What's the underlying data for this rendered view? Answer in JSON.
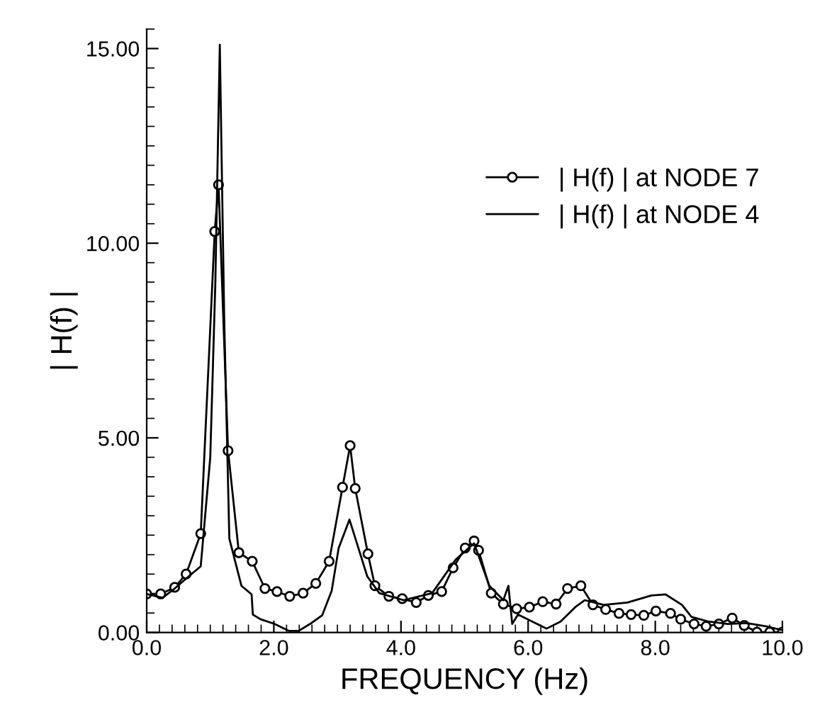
{
  "chart_data": {
    "type": "line",
    "xlabel": "FREQUENCY (Hz)",
    "ylabel": "| H(f) |",
    "xlim": [
      0,
      10
    ],
    "ylim": [
      0,
      15.5
    ],
    "xticks": [
      {
        "value": 0,
        "label": "0.0"
      },
      {
        "value": 2,
        "label": "2.0"
      },
      {
        "value": 4,
        "label": "4.0"
      },
      {
        "value": 6,
        "label": "6.0"
      },
      {
        "value": 8,
        "label": "8.0"
      },
      {
        "value": 10,
        "label": "10.0"
      }
    ],
    "yticks": [
      {
        "value": 0,
        "label": "0.00"
      },
      {
        "value": 5,
        "label": "5.00"
      },
      {
        "value": 10,
        "label": "10.00"
      },
      {
        "value": 15,
        "label": "15.00"
      }
    ],
    "grid": false,
    "legend": "right",
    "series": [
      {
        "name": "| H(f) | at NODE 7",
        "color": "#000000",
        "marker": "circle",
        "x": [
          0,
          0.22,
          0.44,
          0.62,
          0.85,
          1.07,
          1.13,
          1.28,
          1.45,
          1.66,
          1.86,
          2.05,
          2.25,
          2.46,
          2.66,
          2.87,
          3.08,
          3.2,
          3.28,
          3.48,
          3.59,
          3.81,
          4.02,
          4.24,
          4.43,
          4.64,
          4.82,
          5.01,
          5.15,
          5.22,
          5.42,
          5.61,
          5.82,
          6.02,
          6.23,
          6.44,
          6.62,
          6.83,
          7.02,
          7.22,
          7.43,
          7.62,
          7.82,
          8.01,
          8.24,
          8.4,
          8.61,
          8.8,
          9.0,
          9.21,
          9.4,
          9.6,
          9.8,
          10
        ],
        "values": [
          0.99,
          0.99,
          1.16,
          1.5,
          2.54,
          10.3,
          11.5,
          4.67,
          2.05,
          1.83,
          1.13,
          1.05,
          0.93,
          1.01,
          1.26,
          1.83,
          3.73,
          4.8,
          3.7,
          2.02,
          1.2,
          0.93,
          0.87,
          0.77,
          0.95,
          1.05,
          1.66,
          2.17,
          2.35,
          2.11,
          1.01,
          0.73,
          0.61,
          0.65,
          0.79,
          0.73,
          1.13,
          1.2,
          0.71,
          0.59,
          0.49,
          0.46,
          0.44,
          0.55,
          0.49,
          0.34,
          0.22,
          0.16,
          0.22,
          0.37,
          0.18,
          0.01,
          0.01,
          0.01
        ]
      },
      {
        "name": "| H(f) | at NODE 4",
        "color": "#000000",
        "marker": "none",
        "x": [
          0,
          0.25,
          0.44,
          0.66,
          0.85,
          1.0,
          1.08,
          1.15,
          1.22,
          1.3,
          1.49,
          1.65,
          1.67,
          1.79,
          2.01,
          2.24,
          2.39,
          2.57,
          2.76,
          2.91,
          3.02,
          3.19,
          3.47,
          3.66,
          4.04,
          4.49,
          4.86,
          5.15,
          5.39,
          5.61,
          5.69,
          5.75,
          5.84,
          6.14,
          6.29,
          6.51,
          6.74,
          6.89,
          7.19,
          7.56,
          7.94,
          8.16,
          8.42,
          8.57,
          8.84,
          9.14,
          9.44,
          9.74,
          10
        ],
        "values": [
          0.99,
          0.89,
          1.13,
          1.44,
          1.7,
          4.5,
          9.0,
          15.1,
          8.0,
          2.41,
          1.2,
          0.98,
          0.46,
          0.34,
          0.22,
          0.04,
          0.04,
          0.22,
          0.44,
          1.07,
          2.17,
          2.9,
          1.44,
          1.01,
          0.83,
          1.01,
          1.87,
          2.29,
          1.2,
          0.83,
          1.2,
          0.22,
          0.46,
          0.22,
          0.1,
          0.28,
          0.65,
          0.83,
          0.71,
          0.77,
          0.95,
          0.98,
          0.71,
          0.4,
          0.28,
          0.22,
          0.24,
          0.16,
          0.06
        ]
      }
    ]
  }
}
